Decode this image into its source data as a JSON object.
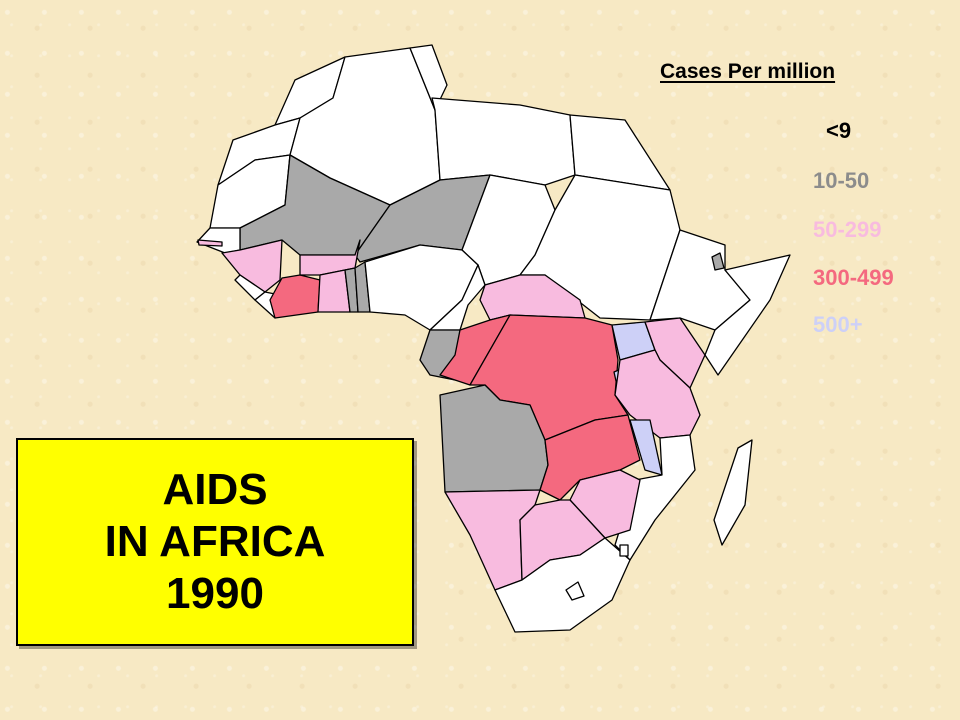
{
  "legend": {
    "title": "Cases Per million",
    "categories": [
      {
        "label": "<9",
        "color": "#ffffff",
        "text_color": "#000000"
      },
      {
        "label": "10-50",
        "color": "#a9a9a9",
        "text_color": "#8c8c8c"
      },
      {
        "label": "50-299",
        "color": "#f8bbdf",
        "text_color": "#f8bbdf"
      },
      {
        "label": "300-499",
        "color": "#f4697f",
        "text_color": "#f4697f"
      },
      {
        "label": "500+",
        "color": "#cdd0f7",
        "text_color": "#cdd0f7"
      }
    ]
  },
  "title_box": {
    "line1": "AIDS",
    "line2": "IN AFRICA",
    "line3": "1990"
  },
  "colors": {
    "background": "#f7e9c4",
    "title_box": "#ffff00"
  }
}
